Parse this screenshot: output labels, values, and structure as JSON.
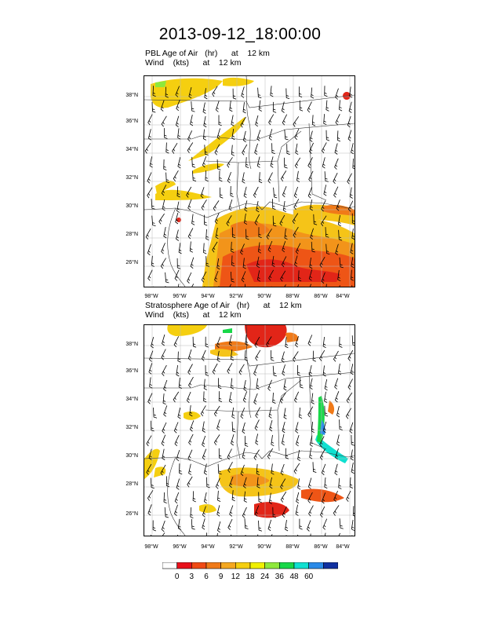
{
  "title": "2013-09-12_18:00:00",
  "panels": [
    {
      "id": "pbl",
      "title_line1": "PBL Age of Air   (hr)      at    12 km",
      "title_line2": "Wind    (kts)      at    12 km",
      "lat_ticks": [
        "38°N",
        "36°N",
        "34°N",
        "32°N",
        "30°N",
        "28°N",
        "26°N"
      ],
      "lon_ticks": [
        "98°W",
        "96°W",
        "94°W",
        "92°W",
        "90°W",
        "88°W",
        "86°W",
        "84°W"
      ]
    },
    {
      "id": "strat",
      "title_line1": "Stratosphere Age of Air   (hr)      at    12 km",
      "title_line2": "Wind    (kts)      at    12 km",
      "lat_ticks": [
        "38°N",
        "36°N",
        "34°N",
        "32°N",
        "30°N",
        "28°N",
        "26°N"
      ],
      "lon_ticks": [
        "98°W",
        "96°W",
        "94°W",
        "92°W",
        "90°W",
        "88°W",
        "86°W",
        "84°W"
      ]
    }
  ],
  "colorbar": {
    "labels": [
      "0",
      "3",
      "6",
      "9",
      "12",
      "18",
      "24",
      "36",
      "48",
      "60"
    ],
    "colors": [
      "#ffffff",
      "#e8101a",
      "#f04a14",
      "#f07a18",
      "#f5a820",
      "#f5cf10",
      "#f0f000",
      "#8ee83c",
      "#18d848",
      "#10e0d0",
      "#2a8ae8",
      "#1030a0"
    ]
  }
}
